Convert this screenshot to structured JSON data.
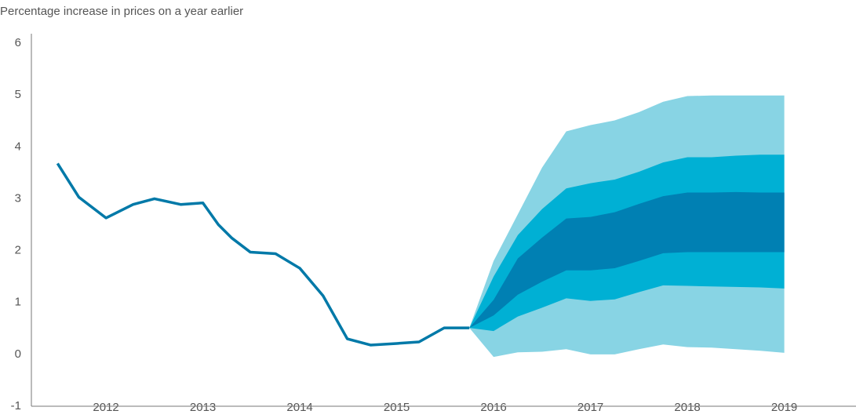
{
  "chart_data": {
    "type": "line",
    "title": "Percentage increase in prices on a year earlier",
    "xlim": [
      2011.23,
      2019.74
    ],
    "xticks": [
      2012,
      2013,
      2014,
      2015,
      2016,
      2017,
      2018,
      2019
    ],
    "ylim": [
      -1,
      6
    ],
    "yticks": [
      -1,
      0,
      1,
      2,
      3,
      4,
      5,
      6
    ],
    "line": {
      "color": "#0079a8",
      "x": [
        2011.5,
        2011.72,
        2012.0,
        2012.28,
        2012.5,
        2012.77,
        2013.0,
        2013.16,
        2013.3,
        2013.49,
        2013.75,
        2014.0,
        2014.24,
        2014.49,
        2014.73,
        2015.0,
        2015.23,
        2015.49,
        2015.75
      ],
      "values": [
        3.68,
        3.03,
        2.63,
        2.89,
        3.0,
        2.89,
        2.92,
        2.5,
        2.24,
        1.97,
        1.94,
        1.66,
        1.13,
        0.3,
        0.18,
        0.21,
        0.24,
        0.51,
        0.51
      ]
    },
    "fan": {
      "x": [
        2015.75,
        2016.0,
        2016.25,
        2016.5,
        2016.75,
        2017.0,
        2017.25,
        2017.5,
        2017.75,
        2018.0,
        2018.25,
        2018.5,
        2018.75,
        2019.0
      ],
      "bands": [
        {
          "color": "#88d4e4",
          "upper": [
            0.51,
            1.8,
            2.7,
            3.6,
            4.3,
            4.42,
            4.51,
            4.67,
            4.87,
            4.98,
            4.99,
            4.99,
            4.99,
            4.99
          ],
          "lower": [
            0.51,
            -0.05,
            0.04,
            0.05,
            0.1,
            0.0,
            0.0,
            0.1,
            0.19,
            0.14,
            0.13,
            0.1,
            0.07,
            0.03
          ]
        },
        {
          "color": "#00b0d4",
          "upper": [
            0.51,
            1.5,
            2.3,
            2.8,
            3.2,
            3.3,
            3.37,
            3.52,
            3.7,
            3.8,
            3.8,
            3.83,
            3.85,
            3.85
          ],
          "lower": [
            0.51,
            0.45,
            0.73,
            0.9,
            1.08,
            1.03,
            1.06,
            1.2,
            1.33,
            1.32,
            1.31,
            1.3,
            1.29,
            1.27
          ]
        },
        {
          "color": "#0080b3",
          "upper": [
            0.51,
            1.05,
            1.85,
            2.25,
            2.62,
            2.65,
            2.74,
            2.9,
            3.05,
            3.12,
            3.12,
            3.13,
            3.12,
            3.12
          ],
          "lower": [
            0.51,
            0.75,
            1.15,
            1.4,
            1.62,
            1.62,
            1.66,
            1.8,
            1.95,
            1.97,
            1.97,
            1.97,
            1.97,
            1.97
          ]
        }
      ]
    }
  }
}
